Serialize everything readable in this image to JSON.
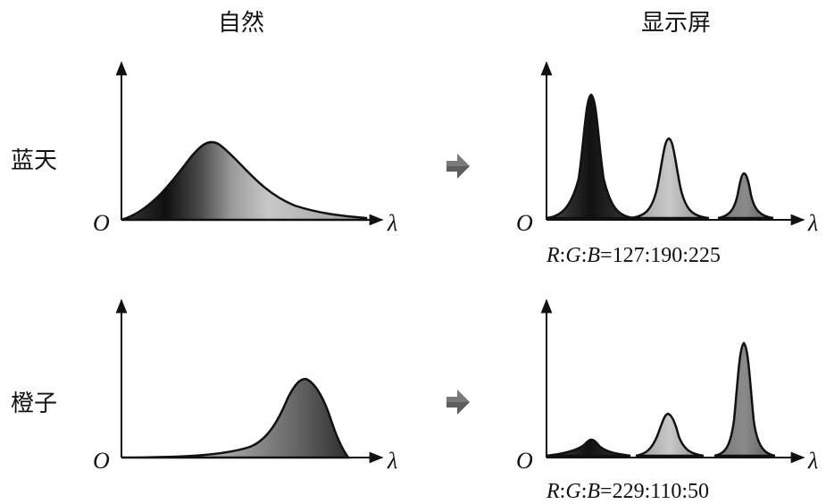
{
  "columns": {
    "nature": "自然",
    "display": "显示屏"
  },
  "rows": [
    {
      "label": "蓝天",
      "display_ratio": {
        "r_label": "R",
        "g_label": "G",
        "b_label": "B",
        "values": "127:190:225"
      }
    },
    {
      "label": "橙子",
      "display_ratio": {
        "r_label": "R",
        "g_label": "G",
        "b_label": "B",
        "values": "229:110:50"
      }
    }
  ],
  "axis": {
    "origin": "O",
    "x": "λ"
  },
  "colors": {
    "arrow": "#606060",
    "ink": "#111111"
  }
}
